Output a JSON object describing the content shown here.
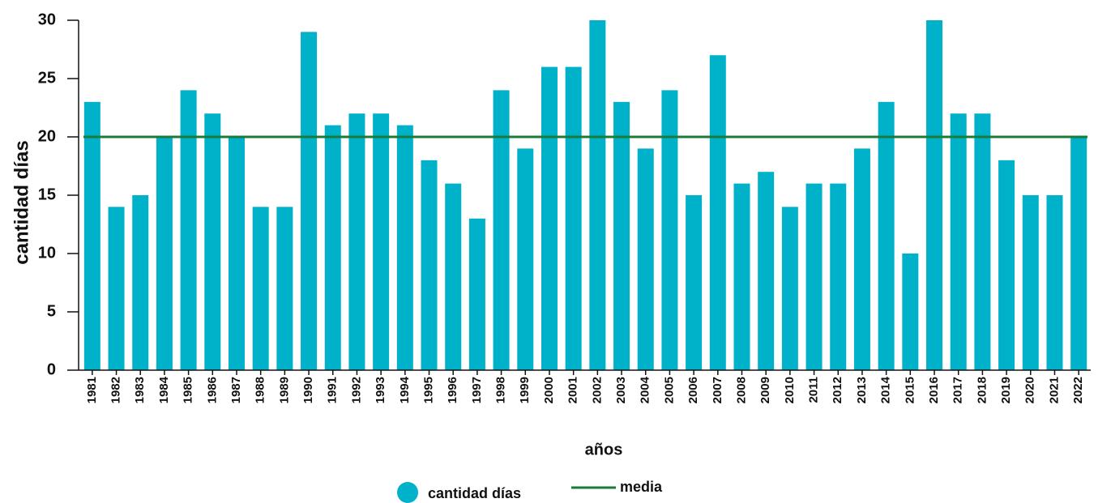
{
  "chart_data": {
    "type": "bar",
    "x_label": "años",
    "y_label": "cantidad días",
    "categories": [
      "1981",
      "1982",
      "1983",
      "1984",
      "1985",
      "1986",
      "1987",
      "1988",
      "1989",
      "1990",
      "1991",
      "1992",
      "1993",
      "1994",
      "1995",
      "1996",
      "1997",
      "1998",
      "1999",
      "2000",
      "2001",
      "2002",
      "2003",
      "2004",
      "2005",
      "2006",
      "2007",
      "2008",
      "2009",
      "2010",
      "2011",
      "2012",
      "2013",
      "2014",
      "2015",
      "2016",
      "2017",
      "2018",
      "2019",
      "2020",
      "2021",
      "2022"
    ],
    "series": [
      {
        "name": "cantidad días",
        "color": "#00b2c9",
        "values": [
          23,
          14,
          15,
          20,
          24,
          22,
          20,
          14,
          14,
          29,
          21,
          22,
          22,
          21,
          18,
          16,
          13,
          24,
          19,
          26,
          26,
          30,
          23,
          19,
          24,
          15,
          27,
          16,
          17,
          14,
          16,
          16,
          19,
          23,
          10,
          30,
          22,
          22,
          18,
          15,
          15,
          20
        ]
      },
      {
        "name": "media",
        "color": "#1a7a3a",
        "type": "hline",
        "value": 20
      }
    ],
    "ylim": [
      0,
      30
    ],
    "yticks": [
      0,
      5,
      10,
      15,
      20,
      25,
      30
    ],
    "grid": false
  }
}
